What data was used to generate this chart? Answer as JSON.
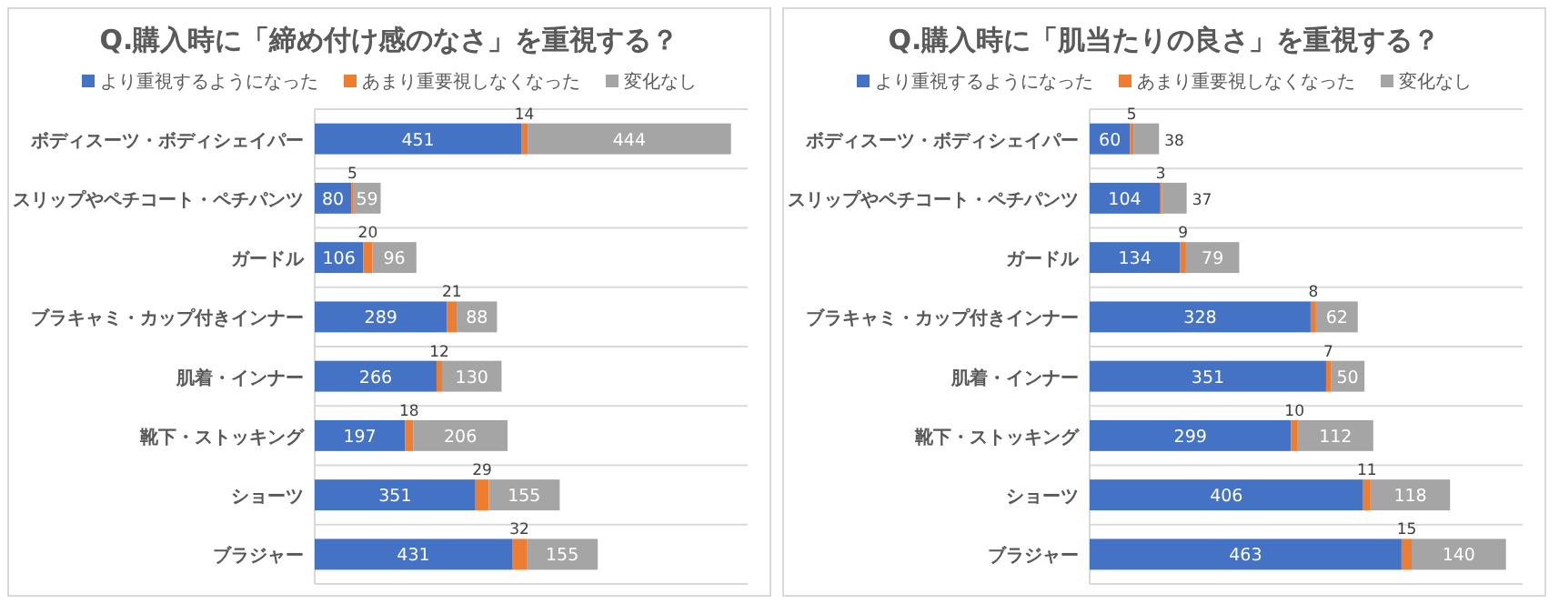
{
  "chart_data": [
    {
      "type": "bar",
      "orientation": "horizontal",
      "stacked": true,
      "data_labels": true,
      "legend": "top",
      "grid": "y",
      "title": "Q.購入時に「締め付け感のなさ」を重視する？",
      "categories": [
        "ボディスーツ・ボディシェイパー",
        "スリップやペチコート・ペチパンツ",
        "ガードル",
        "ブラキャミ・カップ付きインナー",
        "肌着・インナー",
        "靴下・ストッキング",
        "ショーツ",
        "ブラジャー"
      ],
      "series": [
        {
          "name": "より重視するようになった",
          "color": "#4472c4",
          "values": [
            451,
            80,
            106,
            289,
            266,
            197,
            351,
            431
          ]
        },
        {
          "name": "あまり重要視しなくなった",
          "color": "#ed7d31",
          "values": [
            14,
            5,
            20,
            21,
            12,
            18,
            29,
            32
          ]
        },
        {
          "name": "変化なし",
          "color": "#a5a5a5",
          "values": [
            444,
            59,
            96,
            88,
            130,
            206,
            155,
            155
          ]
        }
      ]
    },
    {
      "type": "bar",
      "orientation": "horizontal",
      "stacked": true,
      "data_labels": true,
      "legend": "top",
      "grid": "y",
      "title": "Q.購入時に「肌当たりの良さ」を重視する？",
      "categories": [
        "ボディスーツ・ボディシェイパー",
        "スリップやペチコート・ペチパンツ",
        "ガードル",
        "ブラキャミ・カップ付きインナー",
        "肌着・インナー",
        "靴下・ストッキング",
        "ショーツ",
        "ブラジャー"
      ],
      "series": [
        {
          "name": "より重視するようになった",
          "color": "#4472c4",
          "values": [
            60,
            104,
            134,
            328,
            351,
            299,
            406,
            463
          ]
        },
        {
          "name": "あまり重要視しなくなった",
          "color": "#ed7d31",
          "values": [
            5,
            3,
            9,
            8,
            7,
            10,
            11,
            15
          ]
        },
        {
          "name": "変化なし",
          "color": "#a5a5a5",
          "values": [
            38,
            37,
            79,
            62,
            50,
            112,
            118,
            140
          ]
        }
      ]
    }
  ]
}
